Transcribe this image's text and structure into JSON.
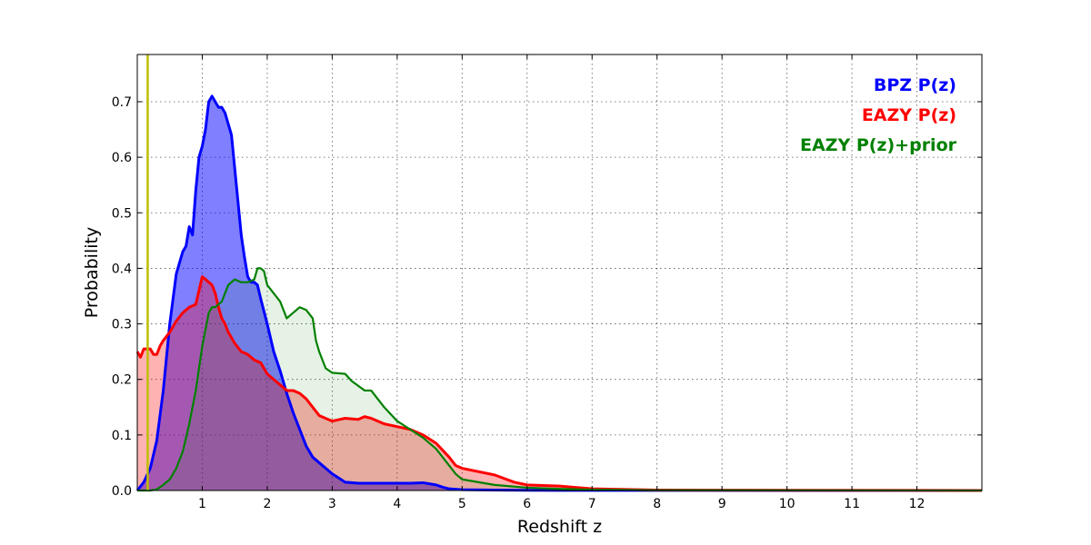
{
  "chart_data": {
    "type": "area",
    "title": "",
    "xlabel": "Redshift z",
    "ylabel": "Probability",
    "xlim": [
      0,
      13
    ],
    "ylim": [
      0,
      0.785
    ],
    "xticks": [
      1,
      2,
      3,
      4,
      5,
      6,
      7,
      8,
      9,
      10,
      11,
      12
    ],
    "xtick_labels": [
      "1",
      "2",
      "3",
      "4",
      "5",
      "6",
      "7",
      "8",
      "9",
      "10",
      "11",
      "12"
    ],
    "yticks": [
      0.0,
      0.1,
      0.2,
      0.3,
      0.4,
      0.5,
      0.6,
      0.7
    ],
    "ytick_labels": [
      "0.0",
      "0.1",
      "0.2",
      "0.3",
      "0.4",
      "0.5",
      "0.6",
      "0.7"
    ],
    "grid": true,
    "legend_position": "top-right",
    "vline": {
      "x": 0.16,
      "color": "#bfbf00"
    },
    "series": [
      {
        "name": "BPZ P(z)",
        "color": "#0000ff",
        "fill": "#0000ff",
        "fill_opacity": 0.5,
        "x": [
          0,
          0.1,
          0.2,
          0.3,
          0.4,
          0.5,
          0.6,
          0.7,
          0.75,
          0.8,
          0.85,
          0.9,
          0.95,
          1.0,
          1.05,
          1.1,
          1.15,
          1.2,
          1.25,
          1.3,
          1.35,
          1.4,
          1.45,
          1.5,
          1.55,
          1.6,
          1.65,
          1.7,
          1.75,
          1.8,
          1.85,
          1.9,
          2.0,
          2.1,
          2.2,
          2.3,
          2.4,
          2.5,
          2.6,
          2.7,
          2.8,
          2.9,
          3.0,
          3.2,
          3.4,
          3.6,
          3.8,
          4.0,
          4.2,
          4.4,
          4.6,
          4.7,
          4.8,
          5.0,
          5.5,
          6.0,
          6.5,
          7.0,
          13.0
        ],
        "y": [
          0.0,
          0.015,
          0.04,
          0.09,
          0.18,
          0.3,
          0.39,
          0.43,
          0.44,
          0.475,
          0.46,
          0.54,
          0.6,
          0.62,
          0.65,
          0.7,
          0.71,
          0.7,
          0.69,
          0.69,
          0.68,
          0.66,
          0.64,
          0.58,
          0.52,
          0.46,
          0.42,
          0.385,
          0.375,
          0.375,
          0.37,
          0.345,
          0.3,
          0.25,
          0.215,
          0.175,
          0.14,
          0.11,
          0.08,
          0.06,
          0.05,
          0.04,
          0.03,
          0.015,
          0.013,
          0.013,
          0.013,
          0.013,
          0.013,
          0.014,
          0.01,
          0.006,
          0.003,
          0.0015,
          0.0008,
          0.0005,
          0.0003,
          0.0002,
          0.0
        ]
      },
      {
        "name": "EAZY P(z)",
        "color": "#ff0000",
        "fill": "#ff0000",
        "fill_opacity": 0.3,
        "x": [
          0,
          0.05,
          0.1,
          0.15,
          0.2,
          0.25,
          0.3,
          0.35,
          0.4,
          0.5,
          0.6,
          0.7,
          0.8,
          0.9,
          0.95,
          1.0,
          1.05,
          1.1,
          1.15,
          1.2,
          1.25,
          1.3,
          1.35,
          1.4,
          1.5,
          1.6,
          1.7,
          1.8,
          1.9,
          2.0,
          2.1,
          2.2,
          2.3,
          2.4,
          2.5,
          2.6,
          2.8,
          3.0,
          3.2,
          3.4,
          3.5,
          3.6,
          3.8,
          4.0,
          4.2,
          4.4,
          4.6,
          4.8,
          4.9,
          5.0,
          5.5,
          5.8,
          6.0,
          6.5,
          7.0,
          8.0,
          13.0
        ],
        "y": [
          0.25,
          0.24,
          0.255,
          0.255,
          0.255,
          0.245,
          0.245,
          0.26,
          0.27,
          0.285,
          0.305,
          0.32,
          0.33,
          0.335,
          0.36,
          0.385,
          0.38,
          0.375,
          0.37,
          0.355,
          0.33,
          0.31,
          0.3,
          0.285,
          0.265,
          0.25,
          0.245,
          0.235,
          0.23,
          0.21,
          0.2,
          0.19,
          0.18,
          0.18,
          0.175,
          0.165,
          0.135,
          0.125,
          0.13,
          0.128,
          0.133,
          0.13,
          0.12,
          0.115,
          0.11,
          0.1,
          0.085,
          0.06,
          0.045,
          0.04,
          0.028,
          0.015,
          0.01,
          0.008,
          0.003,
          0.0008,
          0.0
        ]
      },
      {
        "name": "EAZY P(z)+prior",
        "color": "#008000",
        "fill": "#008000",
        "fill_opacity": 0.1,
        "x": [
          0,
          0.1,
          0.2,
          0.3,
          0.4,
          0.5,
          0.6,
          0.7,
          0.8,
          0.9,
          1.0,
          1.05,
          1.1,
          1.15,
          1.2,
          1.3,
          1.4,
          1.5,
          1.6,
          1.7,
          1.8,
          1.85,
          1.9,
          1.95,
          2.0,
          2.1,
          2.2,
          2.3,
          2.4,
          2.5,
          2.6,
          2.7,
          2.75,
          2.8,
          2.9,
          3.0,
          3.2,
          3.3,
          3.5,
          3.6,
          3.8,
          4.0,
          4.2,
          4.4,
          4.6,
          4.7,
          4.8,
          4.9,
          5.0,
          5.5,
          6.0,
          6.5,
          7.0,
          8.0,
          13.0
        ],
        "y": [
          0.0,
          0.0,
          0.0,
          0.002,
          0.01,
          0.02,
          0.04,
          0.07,
          0.12,
          0.18,
          0.26,
          0.29,
          0.32,
          0.33,
          0.33,
          0.34,
          0.37,
          0.38,
          0.375,
          0.375,
          0.38,
          0.4,
          0.4,
          0.395,
          0.37,
          0.355,
          0.34,
          0.31,
          0.32,
          0.33,
          0.325,
          0.31,
          0.27,
          0.25,
          0.22,
          0.212,
          0.21,
          0.197,
          0.18,
          0.18,
          0.15,
          0.125,
          0.11,
          0.095,
          0.075,
          0.06,
          0.045,
          0.03,
          0.02,
          0.01,
          0.005,
          0.003,
          0.0015,
          0.0005,
          0.0
        ]
      }
    ]
  }
}
